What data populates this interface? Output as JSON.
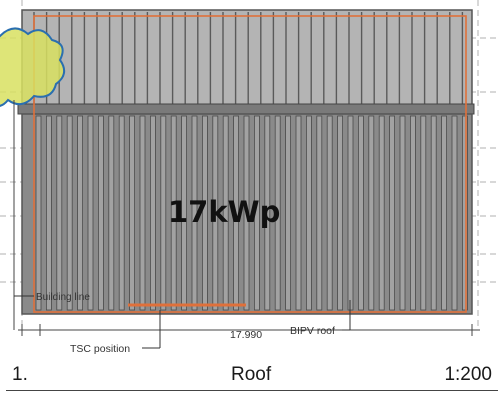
{
  "drawing": {
    "capacity_label": "17kWp",
    "labels": {
      "building_line": "Building line",
      "tsc_position": "TSC position",
      "dimension": "17.990",
      "bipv_roof": "BIPV roof"
    }
  },
  "title_block": {
    "number": "1.",
    "name": "Roof",
    "scale": "1:200"
  },
  "colors": {
    "upper_roof": "#b4b4b4",
    "lower_roof": "#8a8a8a",
    "outline_orange": "#e0703a",
    "cloud_fill": "#d8e060",
    "cloud_stroke": "#2a6fb0"
  }
}
